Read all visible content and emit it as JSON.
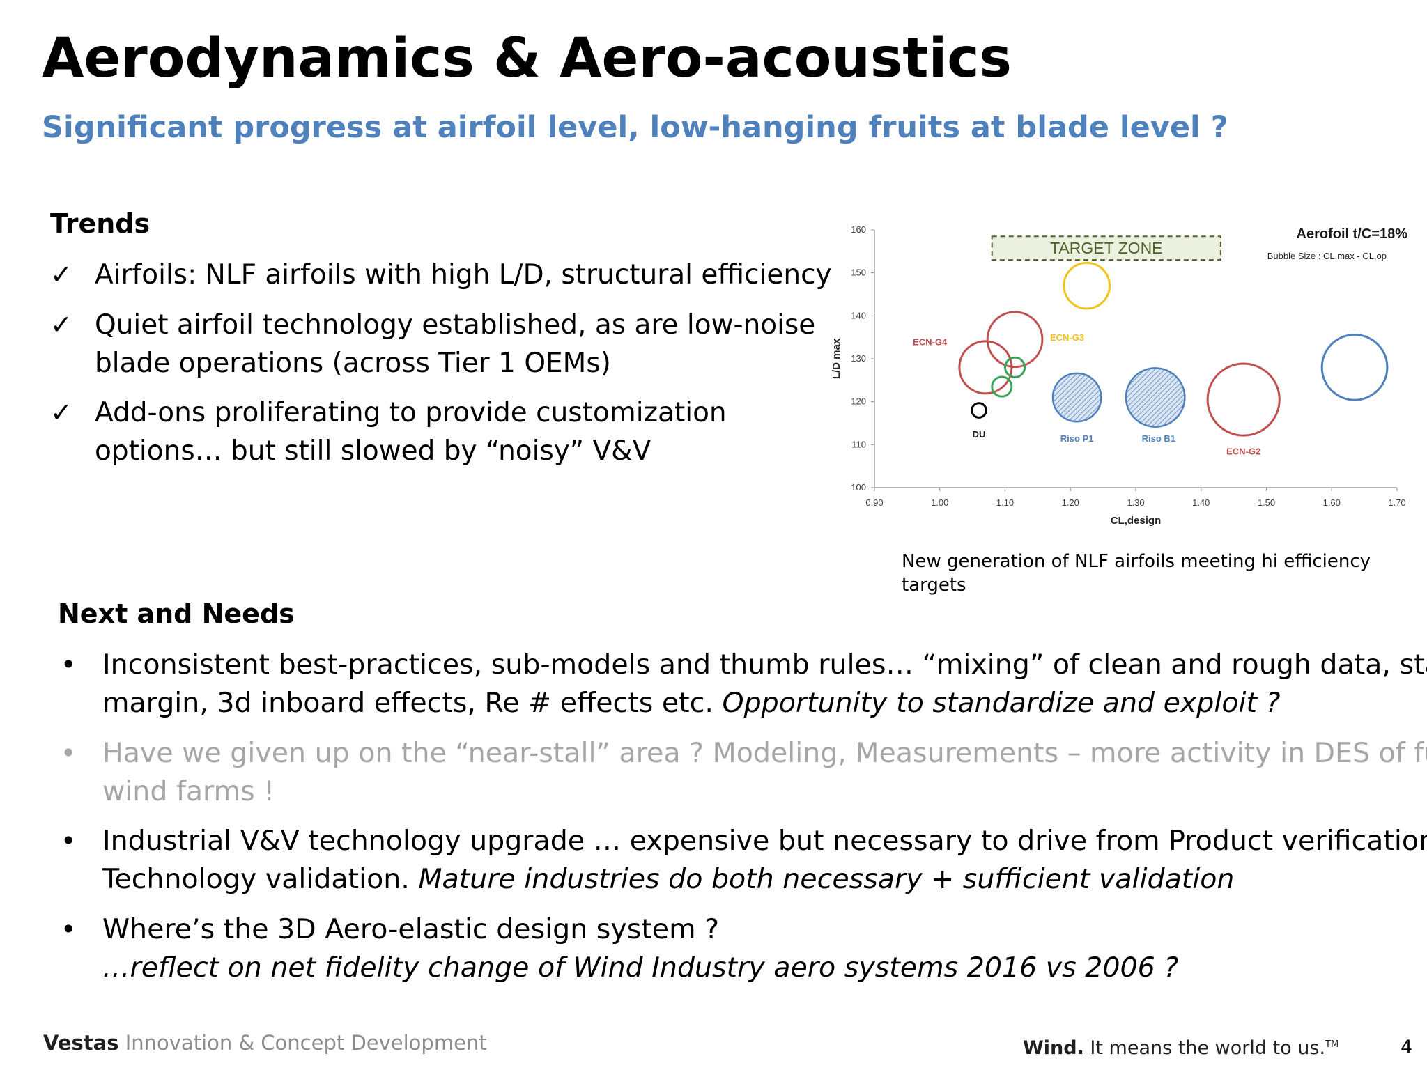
{
  "slide": {
    "title": "Aerodynamics & Aero-acoustics",
    "subtitle": "Significant  progress at airfoil level, low-hanging fruits at blade level ?",
    "page_number": "4"
  },
  "trends": {
    "heading": "Trends",
    "items": [
      {
        "lines": [
          "Airfoils: NLF airfoils with high L/D,  structural efficiency"
        ]
      },
      {
        "lines": [
          "Quiet airfoil technology established, as are low-noise",
          "blade operations (across Tier 1 OEMs)"
        ]
      },
      {
        "lines": [
          "Add-ons proliferating to provide customization",
          "options… but still slowed by “noisy” V&V"
        ]
      }
    ]
  },
  "chart": {
    "caption": "New generation of NLF airfoils meeting hi efficiency targets"
  },
  "chart_data": {
    "type": "scatter",
    "title": "Aerofoil t/C=18%",
    "subtitle": "Bubble Size :  CL,max - CL,op",
    "xlabel": "CL,design",
    "ylabel": "L/D max",
    "xlim": [
      0.9,
      1.7
    ],
    "ylim": [
      100,
      160
    ],
    "xticks": [
      "0.90",
      "1.00",
      "1.10",
      "1.20",
      "1.30",
      "1.40",
      "1.50",
      "1.60",
      "1.70"
    ],
    "yticks": [
      "100",
      "110",
      "120",
      "130",
      "140",
      "150",
      "160"
    ],
    "target_zone": {
      "label": "TARGET ZONE",
      "x": [
        1.08,
        1.43
      ],
      "y": [
        153,
        158.5
      ],
      "fill": "#ebf1de",
      "stroke": "#4f6228"
    },
    "points": [
      {
        "name": "ECN-G4",
        "x": 1.07,
        "y": 128,
        "r": 0.04,
        "color": "#c0504d",
        "fill": "none",
        "label_x": 0.985,
        "label_y": 134
      },
      {
        "name": "",
        "x": 1.115,
        "y": 134.5,
        "r": 0.042,
        "color": "#c0504d",
        "fill": "none"
      },
      {
        "name": "ECN-G3",
        "x": 1.225,
        "y": 147,
        "r": 0.035,
        "color": "#f2c31a",
        "fill": "none",
        "label_x": 1.195,
        "label_y": 135
      },
      {
        "name": "",
        "x": 1.115,
        "y": 128,
        "r": 0.015,
        "color": "#3aa35a",
        "fill": "none"
      },
      {
        "name": "",
        "x": 1.095,
        "y": 123.5,
        "r": 0.015,
        "color": "#3aa35a",
        "fill": "none"
      },
      {
        "name": "DU",
        "x": 1.06,
        "y": 118,
        "r": 0.011,
        "color": "#000000",
        "fill": "none",
        "label_x": 1.06,
        "label_y": 112.5
      },
      {
        "name": "Riso P1",
        "x": 1.21,
        "y": 121,
        "r": 0.037,
        "color": "#4f81bd",
        "fill": "hatch",
        "label_x": 1.21,
        "label_y": 111.5
      },
      {
        "name": "Riso B1",
        "x": 1.33,
        "y": 121,
        "r": 0.045,
        "color": "#4f81bd",
        "fill": "hatch",
        "label_x": 1.335,
        "label_y": 111.5
      },
      {
        "name": "ECN-G2",
        "x": 1.465,
        "y": 120.5,
        "r": 0.055,
        "color": "#c0504d",
        "fill": "none",
        "label_x": 1.465,
        "label_y": 108.5
      },
      {
        "name": "",
        "x": 1.635,
        "y": 128,
        "r": 0.05,
        "color": "#4f81bd",
        "fill": "none"
      }
    ]
  },
  "needs": {
    "heading": "Next and Needs",
    "items": [
      {
        "muted": false,
        "lines": [
          [
            {
              "text": "Inconsistent best-practices, sub-models and thumb rules… “mixing” of clean and rough data,  stall",
              "italic": false
            }
          ],
          [
            {
              "text": "margin, 3d inboard effects,  Re # effects etc.  ",
              "italic": false
            },
            {
              "text": "Opportunity to standardize and exploit ?",
              "italic": true
            }
          ]
        ]
      },
      {
        "muted": true,
        "lines": [
          [
            {
              "text": "Have we given up on the  “near-stall” area ? Modeling, Measurements – more activity in DES of full",
              "italic": false
            }
          ],
          [
            {
              "text": "wind farms !",
              "italic": false
            }
          ]
        ]
      },
      {
        "muted": false,
        "lines": [
          [
            {
              "text": "Industrial V&V technology upgrade … expensive but necessary to drive from Product verification to",
              "italic": false
            }
          ],
          [
            {
              "text": "Technology validation.  ",
              "italic": false
            },
            {
              "text": "Mature industries do both necessary + sufficient validation",
              "italic": true
            }
          ]
        ]
      },
      {
        "muted": false,
        "lines": [
          [
            {
              "text": "Where’s the 3D Aero-elastic design system ?",
              "italic": false
            }
          ],
          [
            {
              "text": "…reflect on net fidelity change of Wind Industry aero systems 2016 vs 2006 ?",
              "italic": true
            }
          ]
        ]
      }
    ]
  },
  "footer": {
    "brand": "Vestas",
    "unit": " Innovation & Concept Development",
    "tagline_bold": "Wind.",
    "tagline_rest": " It means the world to us.",
    "tm": "TM"
  },
  "icons": {
    "check": "checkmark-icon",
    "bullet": "bullet-dot-icon"
  },
  "colors": {
    "subtitle": "#4f81bd",
    "muted_text": "#a6a6a6"
  }
}
